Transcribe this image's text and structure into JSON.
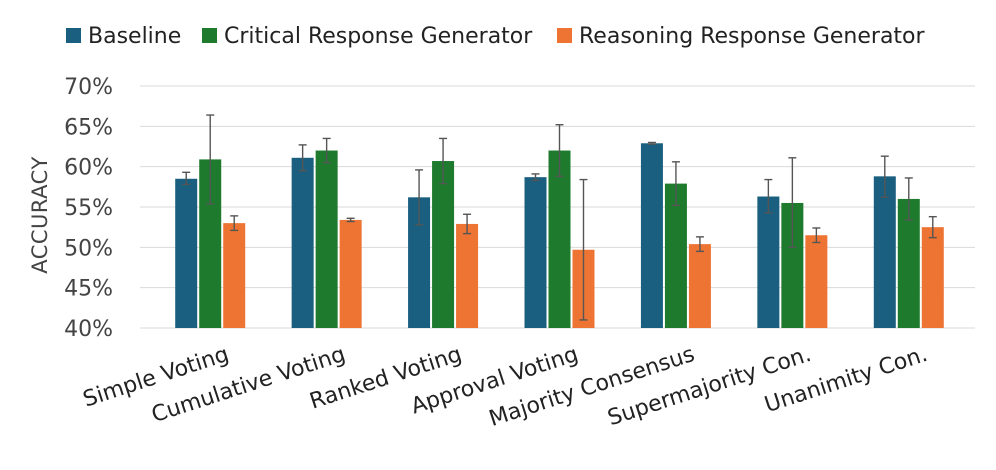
{
  "chart_data": {
    "type": "bar",
    "ylabel": "ACCURACY",
    "xlabel": "",
    "ylim": [
      40,
      70
    ],
    "yticks": [
      "40%",
      "45%",
      "50%",
      "55%",
      "60%",
      "65%",
      "70%"
    ],
    "grid": true,
    "legend_position": "top",
    "categories": [
      "Simple Voting",
      "Cumulative Voting",
      "Ranked Voting",
      "Approval Voting",
      "Majority Consensus",
      "Supermajority Con.",
      "Unanimity Con."
    ],
    "series": [
      {
        "name": "Baseline",
        "color": "#1a5f7f",
        "values": [
          58.5,
          61.1,
          56.2,
          58.7,
          62.9,
          56.3,
          58.8
        ],
        "err_low": [
          57.8,
          59.5,
          52.8,
          58.3,
          62.8,
          54.3,
          56.2
        ],
        "err_high": [
          59.3,
          62.7,
          59.6,
          59.1,
          63.0,
          58.4,
          61.3
        ]
      },
      {
        "name": "Critical Response Generator",
        "color": "#1e7b2e",
        "values": [
          60.9,
          62.0,
          60.7,
          62.0,
          57.9,
          55.5,
          56.0
        ],
        "err_low": [
          55.4,
          60.5,
          57.9,
          58.8,
          55.2,
          50.0,
          53.4
        ],
        "err_high": [
          66.4,
          63.5,
          63.5,
          65.2,
          60.6,
          61.1,
          58.6
        ]
      },
      {
        "name": "Reasoning Response Generator",
        "color": "#ed7432",
        "values": [
          53.0,
          53.4,
          52.9,
          49.7,
          50.4,
          51.5,
          52.5
        ],
        "err_low": [
          52.1,
          53.2,
          51.7,
          41.0,
          49.5,
          50.6,
          51.2
        ],
        "err_high": [
          53.9,
          53.6,
          54.1,
          58.4,
          51.3,
          52.4,
          53.8
        ]
      }
    ]
  }
}
